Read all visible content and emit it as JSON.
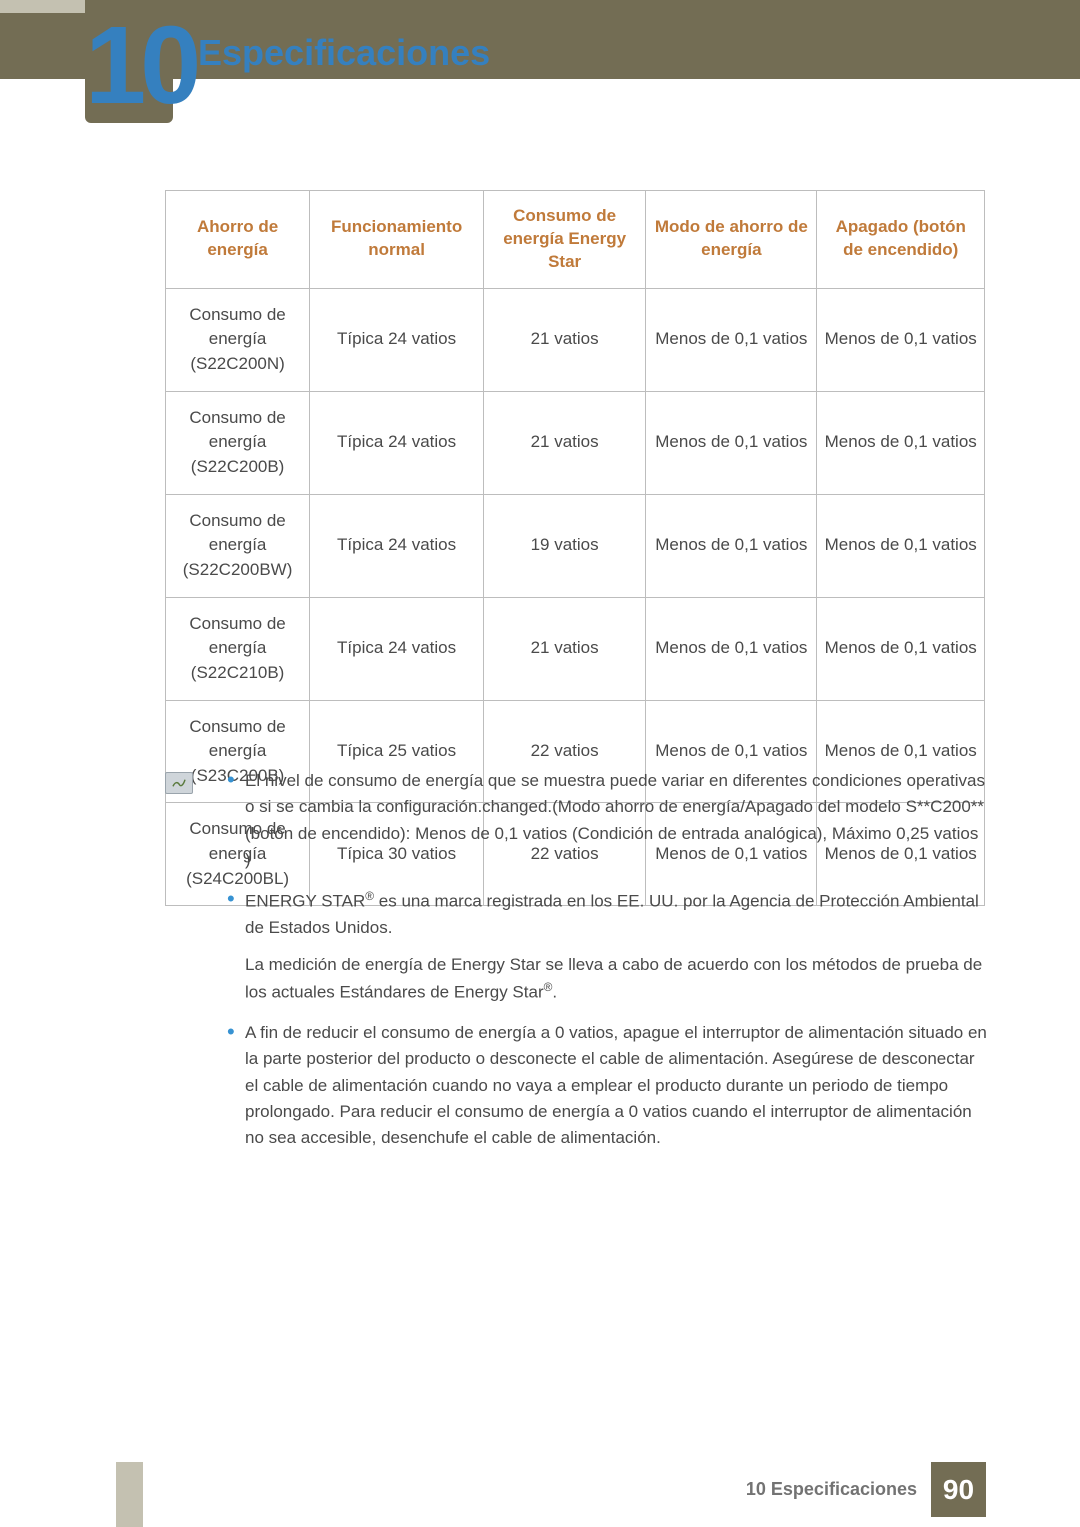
{
  "header": {
    "chapter_number": "10",
    "title": "Especificaciones",
    "title_color": "#3580bf",
    "band_color": "#736d54",
    "stripe_color": "#c4c1b1"
  },
  "footer": {
    "text": "10 Especificaciones",
    "page_number": "90",
    "box_color": "#736d54"
  },
  "table": {
    "header_color": "#c07a3a",
    "border_color": "#bdbdbd",
    "columns": [
      "Ahorro de energía",
      "Funcionamiento normal",
      "Consumo de energía Energy Star",
      "Modo de ahorro de energía",
      "Apagado (botón de encendido)"
    ],
    "rows": [
      {
        "c0": "Consumo de energía (S22C200N)",
        "c1": "Típica 24 vatios",
        "c2": "21 vatios",
        "c3": "Menos de 0,1 vatios",
        "c4": "Menos de 0,1 vatios"
      },
      {
        "c0": "Consumo de energía (S22C200B)",
        "c1": "Típica 24 vatios",
        "c2": "21 vatios",
        "c3": "Menos de 0,1 vatios",
        "c4": "Menos de 0,1 vatios"
      },
      {
        "c0": "Consumo de energía (S22C200BW)",
        "c1": "Típica 24 vatios",
        "c2": "19 vatios",
        "c3": "Menos de 0,1 vatios",
        "c4": "Menos de 0,1 vatios"
      },
      {
        "c0": "Consumo de energía (S22C210B)",
        "c1": "Típica 24 vatios",
        "c2": "21 vatios",
        "c3": "Menos de 0,1 vatios",
        "c4": "Menos de 0,1 vatios"
      },
      {
        "c0": "Consumo de energía (S23C200B)",
        "c1": "Típica 25 vatios",
        "c2": "22 vatios",
        "c3": "Menos de 0,1 vatios",
        "c4": "Menos de 0,1 vatios"
      },
      {
        "c0": "Consumo de energía (S24C200BL)",
        "c1": "Típica 30 vatios",
        "c2": "22 vatios",
        "c3": "Menos de 0,1 vatios",
        "c4": "Menos de 0,1 vatios"
      }
    ]
  },
  "notes": {
    "bullet_color": "#3792d2",
    "items": [
      {
        "text": "El nivel de consumo de energía que se muestra puede variar en diferentes condiciones operativas o si se cambia la configuración.changed.(Modo ahorro de energía/Apagado del modelo S**C200** (botón de encendido): Menos de 0,1 vatios (Condición de entrada analógica), Máximo 0,25 vatios )"
      },
      {
        "text_pre": "ENERGY STAR",
        "sup1": "®",
        "text_mid": " es una marca registrada en los EE. UU. por la Agencia de Protección Ambiental de Estados Unidos.",
        "subpara_pre": "La medición de energía de Energy Star se lleva a cabo de acuerdo con los métodos de prueba de los actuales Estándares de Energy Star",
        "sup2": "®",
        "subpara_post": "."
      },
      {
        "text": "A fin de reducir el consumo de energía a 0 vatios, apague el interruptor de alimentación situado en la parte posterior del producto o desconecte el cable de alimentación. Asegúrese de desconectar el cable de alimentación cuando no vaya a emplear el producto durante un periodo de tiempo prolongado. Para reducir el consumo de energía a 0 vatios cuando el interruptor de alimentación no sea accesible, desenchufe el cable de alimentación."
      }
    ]
  }
}
